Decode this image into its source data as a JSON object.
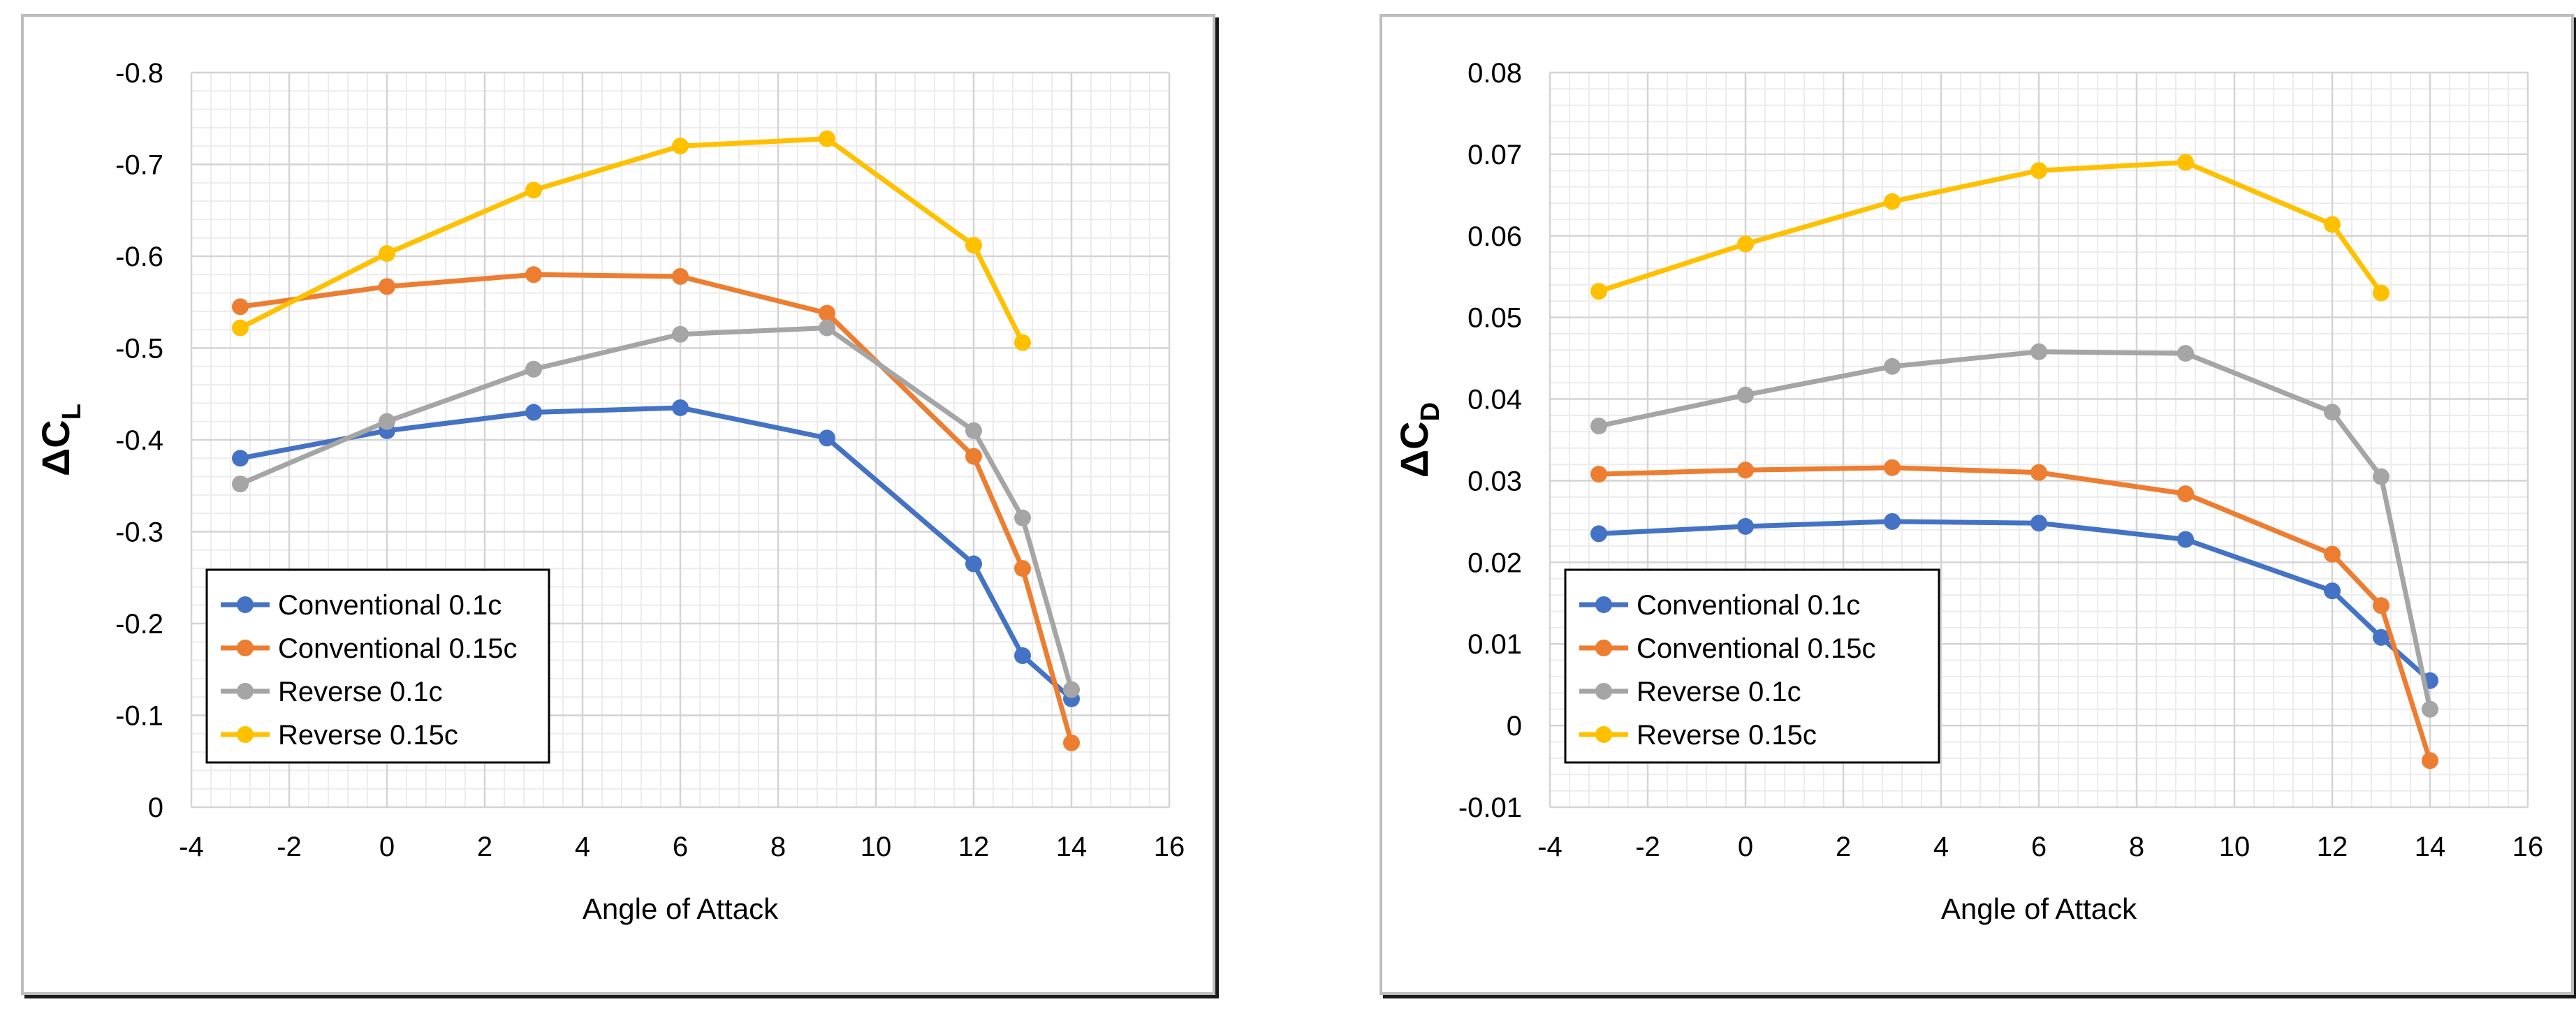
{
  "chart_data": [
    {
      "type": "line",
      "title": "",
      "xlabel": "Angle of Attack",
      "ylabel_main": "ΔC",
      "ylabel_sub": "L",
      "xlim": [
        -4,
        16
      ],
      "ylim": [
        0,
        -0.8
      ],
      "x_ticks": [
        -4,
        -2,
        0,
        2,
        4,
        6,
        8,
        10,
        12,
        14,
        16
      ],
      "x_tick_labels": [
        "-4",
        "-2",
        "0",
        "2",
        "4",
        "6",
        "8",
        "10",
        "12",
        "14",
        "16"
      ],
      "y_ticks": [
        0,
        -0.1,
        -0.2,
        -0.3,
        -0.4,
        -0.5,
        -0.6,
        -0.7,
        -0.8
      ],
      "y_tick_labels": [
        "0",
        "-0.1",
        "-0.2",
        "-0.3",
        "-0.4",
        "-0.5",
        "-0.6",
        "-0.7",
        "-0.8"
      ],
      "grid": true,
      "legend_position": "bottom-left",
      "series": [
        {
          "name": "Conventional 0.1c",
          "color": "#4472c4",
          "x": [
            -3,
            0,
            3,
            6,
            9,
            12,
            13,
            14
          ],
          "y": [
            -0.38,
            -0.41,
            -0.43,
            -0.435,
            -0.402,
            -0.265,
            -0.165,
            -0.118
          ]
        },
        {
          "name": "Conventional 0.15c",
          "color": "#ed7d31",
          "x": [
            -3,
            0,
            3,
            6,
            9,
            12,
            13,
            14
          ],
          "y": [
            -0.545,
            -0.567,
            -0.58,
            -0.578,
            -0.538,
            -0.382,
            -0.26,
            -0.07
          ]
        },
        {
          "name": "Reverse 0.1c",
          "color": "#a5a5a5",
          "x": [
            -3,
            0,
            3,
            6,
            9,
            12,
            13,
            14
          ],
          "y": [
            -0.352,
            -0.42,
            -0.477,
            -0.515,
            -0.522,
            -0.41,
            -0.315,
            -0.128
          ]
        },
        {
          "name": "Reverse 0.15c",
          "color": "#ffc000",
          "x": [
            -3,
            0,
            3,
            6,
            9,
            12,
            13
          ],
          "y": [
            -0.522,
            -0.603,
            -0.672,
            -0.72,
            -0.728,
            -0.612,
            -0.506
          ]
        }
      ]
    },
    {
      "type": "line",
      "title": "",
      "xlabel": "Angle of Attack",
      "ylabel_main": "ΔC",
      "ylabel_sub": "D",
      "xlim": [
        -4,
        16
      ],
      "ylim": [
        -0.01,
        0.08
      ],
      "x_ticks": [
        -4,
        -2,
        0,
        2,
        4,
        6,
        8,
        10,
        12,
        14,
        16
      ],
      "x_tick_labels": [
        "-4",
        "-2",
        "0",
        "2",
        "4",
        "6",
        "8",
        "10",
        "12",
        "14",
        "16"
      ],
      "y_ticks": [
        -0.01,
        0,
        0.01,
        0.02,
        0.03,
        0.04,
        0.05,
        0.06,
        0.07,
        0.08
      ],
      "y_tick_labels": [
        "-0.01",
        "0",
        "0.01",
        "0.02",
        "0.03",
        "0.04",
        "0.05",
        "0.06",
        "0.07",
        "0.08"
      ],
      "grid": true,
      "legend_position": "bottom-left",
      "series": [
        {
          "name": "Conventional 0.1c",
          "color": "#4472c4",
          "x": [
            -3,
            0,
            3,
            6,
            9,
            12,
            13,
            14
          ],
          "y": [
            0.0235,
            0.0244,
            0.025,
            0.0248,
            0.0228,
            0.0165,
            0.0108,
            0.0055
          ]
        },
        {
          "name": "Conventional 0.15c",
          "color": "#ed7d31",
          "x": [
            -3,
            0,
            3,
            6,
            9,
            12,
            13,
            14
          ],
          "y": [
            0.0308,
            0.0313,
            0.0316,
            0.031,
            0.0284,
            0.021,
            0.0147,
            -0.0043
          ]
        },
        {
          "name": "Reverse 0.1c",
          "color": "#a5a5a5",
          "x": [
            -3,
            0,
            3,
            6,
            9,
            12,
            13,
            14
          ],
          "y": [
            0.0367,
            0.0405,
            0.044,
            0.0458,
            0.0456,
            0.0384,
            0.0305,
            0.002
          ]
        },
        {
          "name": "Reverse 0.15c",
          "color": "#ffc000",
          "x": [
            -3,
            0,
            3,
            6,
            9,
            12,
            13
          ],
          "y": [
            0.0532,
            0.059,
            0.0642,
            0.068,
            0.069,
            0.0614,
            0.053
          ]
        }
      ]
    }
  ]
}
